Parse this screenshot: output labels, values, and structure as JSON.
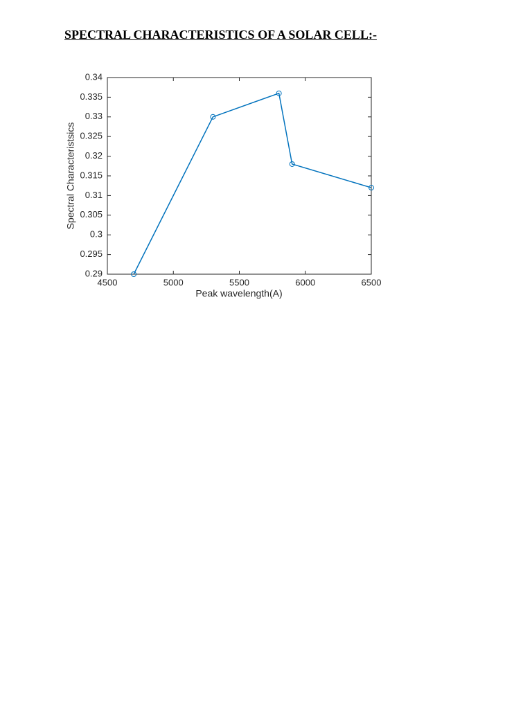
{
  "heading": "SPECTRAL CHARACTERISTICS OF A SOLAR CELL:-",
  "chart_data": {
    "type": "line",
    "x": [
      4700,
      5300,
      5800,
      5900,
      6500
    ],
    "values": [
      0.29,
      0.33,
      0.336,
      0.318,
      0.312
    ],
    "color": "#0072bd",
    "marker": "circle",
    "xlabel": "Peak wavelength(A)",
    "ylabel": "Spectral Characteristsics",
    "xlim": [
      4500,
      6500
    ],
    "ylim": [
      0.29,
      0.34
    ],
    "xticks": [
      4500,
      5000,
      5500,
      6000,
      6500
    ],
    "yticks": [
      0.29,
      0.295,
      0.3,
      0.305,
      0.31,
      0.315,
      0.32,
      0.325,
      0.33,
      0.335,
      0.34
    ],
    "grid": false
  }
}
